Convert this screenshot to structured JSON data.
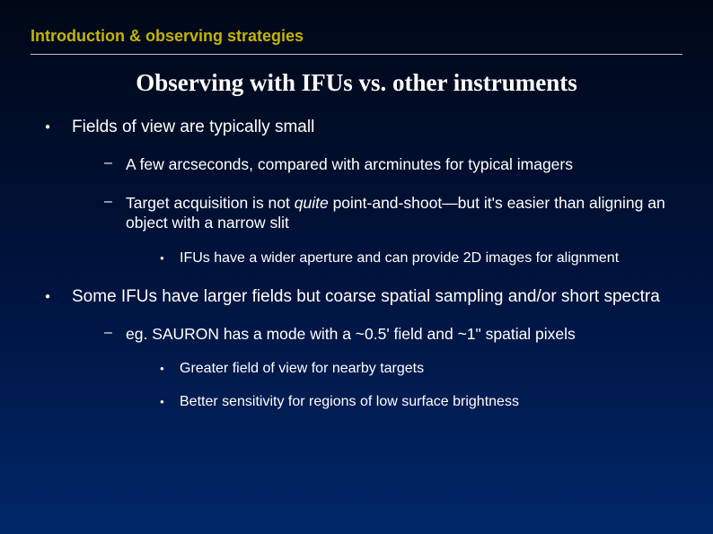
{
  "colors": {
    "header_text": "#c4b400",
    "rule": "#c0c0c0",
    "body_text": "#ffffff",
    "bg_gradient_top": "#000816",
    "bg_gradient_mid": "#001440",
    "bg_gradient_bottom": "#002768"
  },
  "typography": {
    "header_fontsize": 18,
    "title_fontsize": 27,
    "title_family": "Times New Roman",
    "lvl1_fontsize": 19,
    "lvl2_fontsize": 17.5,
    "lvl3_fontsize": 16
  },
  "header": "Introduction & observing strategies",
  "title": "Observing with IFUs vs. other instruments",
  "bullets": [
    {
      "text": "Fields of view are typically small",
      "children": [
        {
          "text": "A few arcseconds, compared with arcminutes for typical imagers",
          "children": []
        },
        {
          "text_pre": "Target acquisition is not ",
          "text_em": "quite",
          "text_post": " point-and-shoot—but it's easier than aligning an object with a narrow slit",
          "children": [
            {
              "text": "IFUs have a wider aperture and can provide 2D images for alignment"
            }
          ]
        }
      ]
    },
    {
      "text": "Some IFUs have larger fields but coarse spatial sampling and/or short spectra",
      "children": [
        {
          "text": "eg. SAURON has a mode with a ~0.5' field and ~1\" spatial pixels",
          "children": [
            {
              "text": "Greater field of view for nearby targets"
            },
            {
              "text": "Better sensitivity for regions of low surface brightness"
            }
          ]
        }
      ]
    }
  ]
}
